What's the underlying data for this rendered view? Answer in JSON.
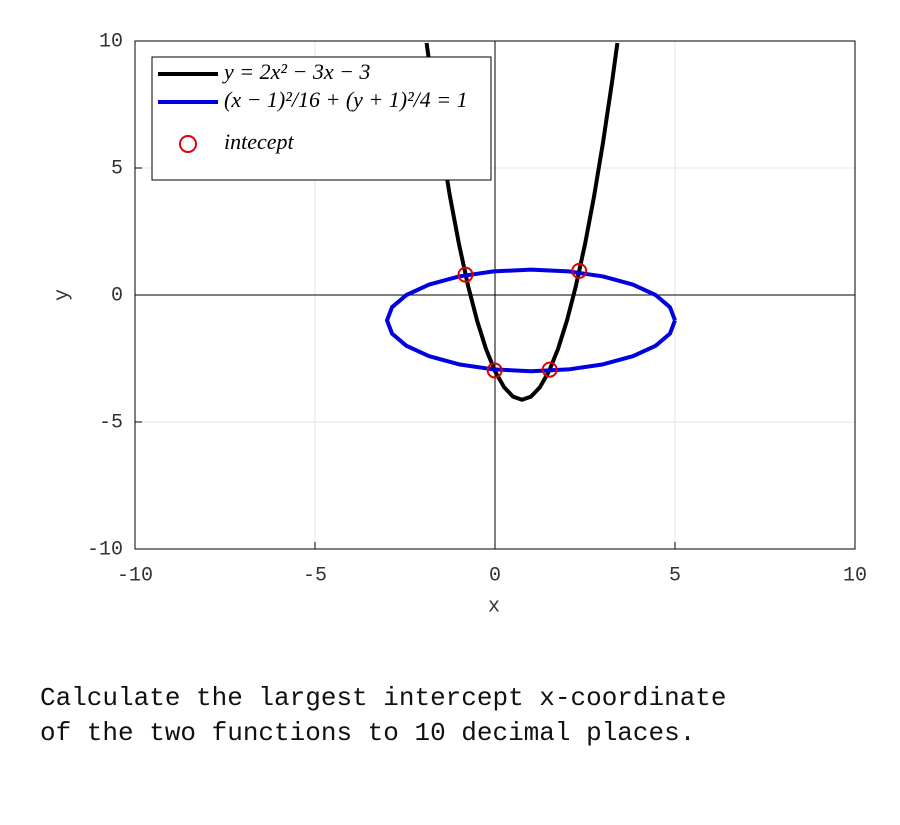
{
  "chart_data": {
    "type": "line",
    "xlabel": "x",
    "ylabel": "y",
    "xlim": [
      -10,
      10
    ],
    "ylim": [
      -10,
      10
    ],
    "xticks": [
      -10,
      -5,
      0,
      5,
      10
    ],
    "yticks": [
      -10,
      -5,
      0,
      5,
      10
    ],
    "grid": true,
    "zero_lines": true,
    "legend": "upper left",
    "series": [
      {
        "name": "y = 2x² − 3x − 3",
        "color": "#000000",
        "style": "line",
        "x": [
          -1.9,
          -1.75,
          -1.5,
          -1.25,
          -1,
          -0.75,
          -0.5,
          -0.25,
          0,
          0.25,
          0.5,
          0.75,
          1,
          1.25,
          1.5,
          1.75,
          2,
          2.25,
          2.5,
          2.75,
          3,
          3.25,
          3.4
        ],
        "values": [
          9.92,
          8.375,
          6,
          3.875,
          2,
          0.375,
          -1,
          -2.125,
          -3,
          -3.625,
          -4,
          -4.125,
          -4,
          -3.625,
          -3,
          -2.125,
          -1,
          0.375,
          2,
          3.875,
          6,
          8.375,
          9.92
        ]
      },
      {
        "name": "(x − 1)²/16 + (y + 1)²/4 = 1",
        "color": "#0000e0",
        "style": "line",
        "x": [
          5,
          4.86,
          4.46,
          3.83,
          3,
          2.04,
          1,
          -0.04,
          -1,
          -1.83,
          -2.46,
          -2.86,
          -3,
          -2.86,
          -2.46,
          -1.83,
          -1,
          -0.04,
          1,
          2.04,
          3,
          3.83,
          4.46,
          4.86,
          5
        ],
        "values": [
          -1,
          -0.48,
          0,
          0.41,
          0.73,
          0.93,
          1,
          0.93,
          0.73,
          0.41,
          0,
          -0.48,
          -1,
          -1.52,
          -2,
          -2.41,
          -2.73,
          -2.93,
          -3,
          -2.93,
          -2.73,
          -2.41,
          -2,
          -1.52,
          -1
        ]
      },
      {
        "name": "intecept",
        "color": "#e00000",
        "style": "marker",
        "x": [
          -0.82,
          -0.01,
          1.52,
          2.34
        ],
        "values": [
          0.8,
          -2.97,
          -2.94,
          0.95
        ]
      }
    ]
  },
  "question": [
    "Calculate the largest intercept x-coordinate",
    "of the two functions to 10 decimal places."
  ]
}
